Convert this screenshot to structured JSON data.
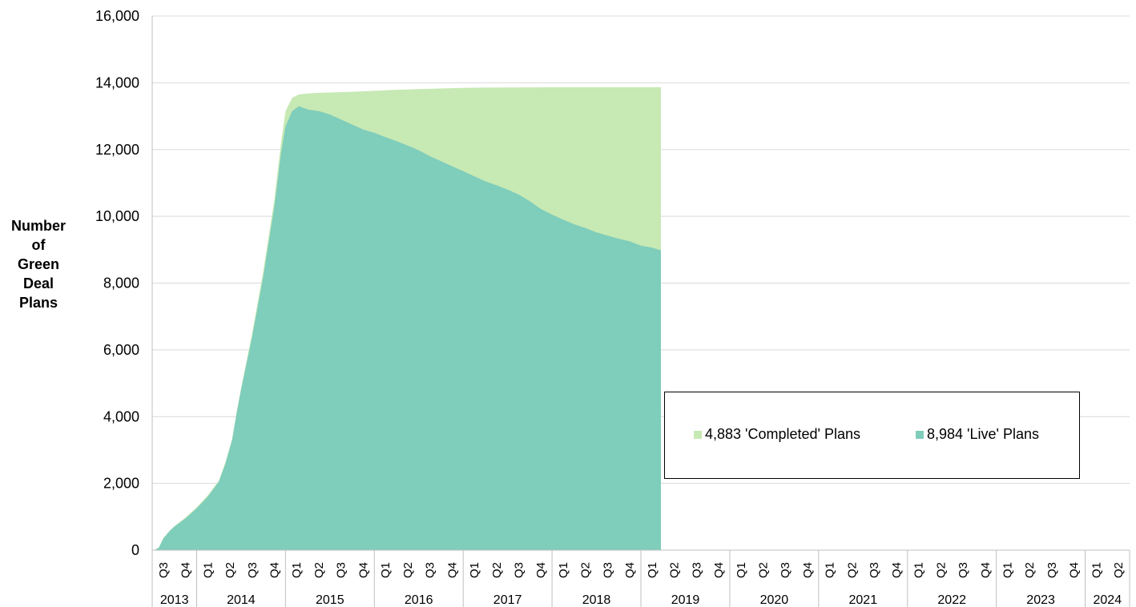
{
  "chart_data": {
    "type": "area",
    "ylabel": [
      "Number",
      "of",
      "Green",
      "Deal",
      "Plans"
    ],
    "ylim": [
      0,
      16000
    ],
    "yticks": [
      "0",
      "2,000",
      "4,000",
      "6,000",
      "8,000",
      "10,000",
      "12,000",
      "14,000",
      "16,000"
    ],
    "stacked": true,
    "grid": "horizontal",
    "legend_position": "center-right",
    "quarters": [
      {
        "year": "2013",
        "q": "Q3"
      },
      {
        "year": "2013",
        "q": "Q4"
      },
      {
        "year": "2014",
        "q": "Q1"
      },
      {
        "year": "2014",
        "q": "Q2"
      },
      {
        "year": "2014",
        "q": "Q3"
      },
      {
        "year": "2014",
        "q": "Q4"
      },
      {
        "year": "2015",
        "q": "Q1"
      },
      {
        "year": "2015",
        "q": "Q2"
      },
      {
        "year": "2015",
        "q": "Q3"
      },
      {
        "year": "2015",
        "q": "Q4"
      },
      {
        "year": "2016",
        "q": "Q1"
      },
      {
        "year": "2016",
        "q": "Q2"
      },
      {
        "year": "2016",
        "q": "Q3"
      },
      {
        "year": "2016",
        "q": "Q4"
      },
      {
        "year": "2017",
        "q": "Q1"
      },
      {
        "year": "2017",
        "q": "Q2"
      },
      {
        "year": "2017",
        "q": "Q3"
      },
      {
        "year": "2017",
        "q": "Q4"
      },
      {
        "year": "2018",
        "q": "Q1"
      },
      {
        "year": "2018",
        "q": "Q2"
      },
      {
        "year": "2018",
        "q": "Q3"
      },
      {
        "year": "2018",
        "q": "Q4"
      },
      {
        "year": "2019",
        "q": "Q1"
      },
      {
        "year": "2019",
        "q": "Q2"
      },
      {
        "year": "2019",
        "q": "Q3"
      },
      {
        "year": "2019",
        "q": "Q4"
      },
      {
        "year": "2020",
        "q": "Q1"
      },
      {
        "year": "2020",
        "q": "Q2"
      },
      {
        "year": "2020",
        "q": "Q3"
      },
      {
        "year": "2020",
        "q": "Q4"
      },
      {
        "year": "2021",
        "q": "Q1"
      },
      {
        "year": "2021",
        "q": "Q2"
      },
      {
        "year": "2021",
        "q": "Q3"
      },
      {
        "year": "2021",
        "q": "Q4"
      },
      {
        "year": "2022",
        "q": "Q1"
      },
      {
        "year": "2022",
        "q": "Q2"
      },
      {
        "year": "2022",
        "q": "Q3"
      },
      {
        "year": "2022",
        "q": "Q4"
      },
      {
        "year": "2023",
        "q": "Q1"
      },
      {
        "year": "2023",
        "q": "Q2"
      },
      {
        "year": "2023",
        "q": "Q3"
      },
      {
        "year": "2023",
        "q": "Q4"
      },
      {
        "year": "2024",
        "q": "Q1"
      },
      {
        "year": "2024",
        "q": "Q2"
      }
    ],
    "years": [
      "2013",
      "2014",
      "2015",
      "2016",
      "2017",
      "2018",
      "2019",
      "2020",
      "2021",
      "2022",
      "2023",
      "2024"
    ],
    "series": [
      {
        "name": "8,984 'Live' Plans",
        "color": "#7fcdbb",
        "points": [
          [
            0.0,
            0
          ],
          [
            0.1,
            0
          ],
          [
            0.3,
            80
          ],
          [
            0.5,
            350
          ],
          [
            0.8,
            580
          ],
          [
            1.0,
            700
          ],
          [
            1.5,
            950
          ],
          [
            2.0,
            1250
          ],
          [
            2.5,
            1600
          ],
          [
            3.0,
            2050
          ],
          [
            3.3,
            2600
          ],
          [
            3.6,
            3300
          ],
          [
            3.8,
            4100
          ],
          [
            4.0,
            4800
          ],
          [
            4.5,
            6400
          ],
          [
            5.0,
            8200
          ],
          [
            5.5,
            10300
          ],
          [
            5.8,
            11900
          ],
          [
            6.0,
            12700
          ],
          [
            6.3,
            13150
          ],
          [
            6.6,
            13300
          ],
          [
            7.0,
            13200
          ],
          [
            7.5,
            13150
          ],
          [
            8.0,
            13050
          ],
          [
            8.5,
            12900
          ],
          [
            9.0,
            12750
          ],
          [
            9.5,
            12600
          ],
          [
            10.0,
            12500
          ],
          [
            10.5,
            12370
          ],
          [
            11.0,
            12250
          ],
          [
            11.5,
            12120
          ],
          [
            12.0,
            11980
          ],
          [
            12.5,
            11800
          ],
          [
            13.0,
            11650
          ],
          [
            13.5,
            11500
          ],
          [
            14.0,
            11350
          ],
          [
            14.5,
            11200
          ],
          [
            15.0,
            11050
          ],
          [
            15.5,
            10930
          ],
          [
            16.0,
            10800
          ],
          [
            16.5,
            10650
          ],
          [
            17.0,
            10450
          ],
          [
            17.5,
            10220
          ],
          [
            18.0,
            10050
          ],
          [
            18.5,
            9900
          ],
          [
            19.0,
            9760
          ],
          [
            19.5,
            9650
          ],
          [
            20.0,
            9520
          ],
          [
            20.5,
            9420
          ],
          [
            21.0,
            9330
          ],
          [
            21.5,
            9250
          ],
          [
            22.0,
            9120
          ],
          [
            22.5,
            9060
          ],
          [
            22.9,
            8984
          ]
        ]
      },
      {
        "name": "4,883 'Completed' Plans",
        "color": "#c7e9b4",
        "points": [
          [
            0.0,
            0
          ],
          [
            0.1,
            0
          ],
          [
            0.3,
            80
          ],
          [
            0.5,
            360
          ],
          [
            0.8,
            600
          ],
          [
            1.0,
            720
          ],
          [
            1.5,
            980
          ],
          [
            2.0,
            1280
          ],
          [
            2.5,
            1640
          ],
          [
            3.0,
            2080
          ],
          [
            3.3,
            2640
          ],
          [
            3.6,
            3340
          ],
          [
            3.8,
            4140
          ],
          [
            4.0,
            4850
          ],
          [
            4.5,
            6500
          ],
          [
            5.0,
            8350
          ],
          [
            5.5,
            10500
          ],
          [
            5.8,
            12200
          ],
          [
            6.0,
            13150
          ],
          [
            6.3,
            13550
          ],
          [
            6.6,
            13650
          ],
          [
            7.0,
            13680
          ],
          [
            7.5,
            13700
          ],
          [
            8.0,
            13710
          ],
          [
            9.0,
            13730
          ],
          [
            10.0,
            13760
          ],
          [
            11.0,
            13790
          ],
          [
            12.0,
            13810
          ],
          [
            13.0,
            13830
          ],
          [
            14.0,
            13845
          ],
          [
            15.0,
            13855
          ],
          [
            16.0,
            13860
          ],
          [
            18.0,
            13864
          ],
          [
            20.0,
            13866
          ],
          [
            22.9,
            13867
          ]
        ]
      }
    ]
  }
}
